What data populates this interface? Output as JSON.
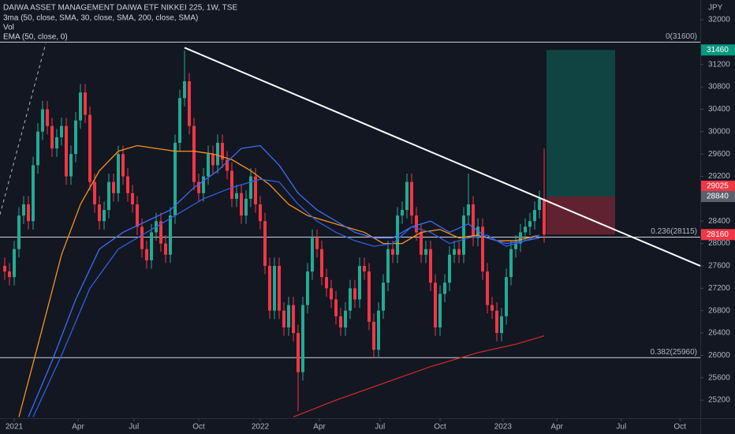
{
  "chart_data": {
    "type": "candlestick",
    "title": "DAIWA ASSET MANAGEMENT DAIWA ETF NIKKEI 225, 1W, TSE",
    "indicators": [
      "3ma (50, close, SMA, 30, close, SMA, 200, close, SMA)",
      "Vol",
      "EMA (50, close, 0)"
    ],
    "currency": "JPY",
    "up_color": "#22ab94",
    "down_color": "#f23645",
    "xlim": [
      -1,
      147
    ],
    "ylim": [
      24877,
      32353
    ],
    "xticks": [
      {
        "value": 2,
        "label": "2021"
      },
      {
        "value": 15.5,
        "label": "Apr"
      },
      {
        "value": 27.3,
        "label": "Jul"
      },
      {
        "value": 41,
        "label": "Oct"
      },
      {
        "value": 54,
        "label": "2022"
      },
      {
        "value": 66.5,
        "label": "Apr"
      },
      {
        "value": 79.3,
        "label": "Jul"
      },
      {
        "value": 92,
        "label": "Oct"
      },
      {
        "value": 105.3,
        "label": "2023"
      },
      {
        "value": 116.7,
        "label": "Apr"
      },
      {
        "value": 130.3,
        "label": "Jul"
      },
      {
        "value": 142.7,
        "label": "Oct"
      }
    ],
    "yticks": [
      32000,
      31200,
      30800,
      30400,
      30000,
      29600,
      29200,
      28400,
      28000,
      27600,
      27200,
      26800,
      26400,
      26000,
      25600,
      25200
    ],
    "x": [
      0,
      1,
      2,
      3,
      4,
      5,
      6,
      7,
      8,
      9,
      10,
      11,
      12,
      13,
      14,
      15,
      16,
      17,
      18,
      19,
      20,
      21,
      22,
      23,
      24,
      25,
      26,
      27,
      28,
      29,
      30,
      31,
      32,
      33,
      34,
      35,
      36,
      37,
      38,
      39,
      40,
      41,
      42,
      43,
      44,
      45,
      46,
      47,
      48,
      49,
      50,
      51,
      52,
      53,
      54,
      55,
      56,
      57,
      58,
      59,
      60,
      61,
      62,
      63,
      64,
      65,
      66,
      67,
      68,
      69,
      70,
      71,
      72,
      73,
      74,
      75,
      76,
      77,
      78,
      79,
      80,
      81,
      82,
      83,
      84,
      85,
      86,
      87,
      88,
      89,
      90,
      91,
      92,
      93,
      94,
      95,
      96,
      97,
      98,
      99,
      100,
      101,
      102,
      103,
      104,
      105,
      106,
      107,
      108,
      109,
      110,
      111,
      112,
      113,
      114
    ],
    "open": [
      27600,
      27500,
      27400,
      27900,
      28500,
      28700,
      28400,
      29400,
      30000,
      30400,
      30100,
      29700,
      29900,
      30100,
      29200,
      29600,
      30200,
      30700,
      30300,
      29100,
      28700,
      28400,
      28600,
      29100,
      28900,
      29600,
      29200,
      28900,
      28700,
      28300,
      27900,
      27700,
      28200,
      28400,
      28000,
      27800,
      28500,
      29800,
      30600,
      30900,
      30100,
      29100,
      28900,
      29200,
      29600,
      29400,
      29800,
      29500,
      29300,
      28800,
      28900,
      28500,
      28800,
      29200,
      28700,
      28400,
      27600,
      26800,
      27600,
      26800,
      26500,
      26900,
      26400,
      25700,
      26900,
      27500,
      28100,
      27900,
      27400,
      27200,
      27000,
      26700,
      26500,
      26800,
      27200,
      27000,
      27600,
      27500,
      26600,
      26100,
      26800,
      27300,
      27900,
      27800,
      28500,
      28600,
      29100,
      28500,
      28200,
      27800,
      27900,
      27300,
      26500,
      27100,
      27300,
      27800,
      27900,
      27800,
      28500,
      28700,
      28100,
      28300,
      27500,
      26900,
      26800,
      26400,
      26700,
      27400,
      27900,
      28000,
      28200,
      28300,
      28400,
      28600,
      28800
    ],
    "high": [
      27750,
      27650,
      28050,
      28650,
      28850,
      28850,
      29550,
      30150,
      30550,
      30550,
      30250,
      30050,
      30250,
      30250,
      29750,
      30350,
      30850,
      30850,
      30450,
      29250,
      28850,
      28750,
      29250,
      29250,
      29750,
      29750,
      29350,
      29050,
      28850,
      28450,
      28050,
      28350,
      28550,
      28550,
      28150,
      28650,
      29950,
      30750,
      31450,
      31050,
      30250,
      29250,
      29350,
      29750,
      29750,
      29950,
      29950,
      29650,
      29450,
      29050,
      29050,
      28950,
      29350,
      29350,
      28850,
      28550,
      27750,
      27750,
      27750,
      26950,
      27050,
      27050,
      26550,
      27050,
      27650,
      28250,
      28250,
      28050,
      27550,
      27350,
      27150,
      26850,
      26950,
      27350,
      27350,
      27750,
      27750,
      27650,
      26750,
      26950,
      27450,
      28050,
      28050,
      28650,
      28750,
      29250,
      29250,
      28650,
      28350,
      28050,
      28050,
      27450,
      27250,
      27450,
      27950,
      28050,
      28050,
      28650,
      29250,
      28850,
      28450,
      28450,
      27650,
      27050,
      26950,
      26850,
      27550,
      28050,
      28150,
      28350,
      28450,
      28550,
      28750,
      28950,
      29700
    ],
    "low": [
      27350,
      27250,
      27250,
      27750,
      28350,
      28250,
      28250,
      29250,
      29850,
      29950,
      29550,
      29550,
      29750,
      29050,
      29050,
      29450,
      30050,
      30150,
      28950,
      28550,
      28250,
      28250,
      28450,
      28750,
      28750,
      29050,
      28750,
      28550,
      28150,
      27750,
      27550,
      27550,
      28050,
      27850,
      27650,
      27650,
      28350,
      29650,
      30450,
      29950,
      28950,
      28750,
      28750,
      29050,
      29250,
      29250,
      29350,
      29150,
      28650,
      28650,
      28350,
      28350,
      28650,
      28550,
      28250,
      27450,
      26650,
      26650,
      26650,
      26350,
      26350,
      26250,
      25000,
      25550,
      26750,
      27350,
      27750,
      27250,
      27050,
      26850,
      26550,
      26350,
      26350,
      26650,
      26850,
      26850,
      27350,
      26450,
      25950,
      25950,
      26650,
      27150,
      27650,
      27650,
      28350,
      28450,
      28350,
      28050,
      27650,
      27650,
      27150,
      26350,
      26350,
      26950,
      27150,
      27650,
      27650,
      27650,
      28350,
      27950,
      27950,
      27350,
      26750,
      26650,
      26250,
      26250,
      26550,
      27250,
      27750,
      27850,
      28050,
      28150,
      28250,
      28450,
      28010
    ],
    "close": [
      27500,
      27400,
      27900,
      28500,
      28700,
      28400,
      29400,
      30000,
      30400,
      30100,
      29700,
      29900,
      30100,
      29200,
      29600,
      30200,
      30700,
      30300,
      29100,
      28700,
      28400,
      28600,
      29100,
      28900,
      29600,
      29200,
      28900,
      28700,
      28300,
      27900,
      27700,
      28200,
      28400,
      28000,
      27800,
      28500,
      29800,
      30600,
      30900,
      30100,
      29100,
      28900,
      29200,
      29600,
      29400,
      29800,
      29500,
      29300,
      28800,
      28900,
      28500,
      28800,
      29200,
      28700,
      28400,
      27600,
      26800,
      27600,
      26800,
      26500,
      26900,
      26400,
      25700,
      26900,
      27500,
      28100,
      27900,
      27400,
      27200,
      27000,
      26700,
      26500,
      26800,
      27200,
      27000,
      27600,
      27500,
      26600,
      26100,
      26800,
      27300,
      27900,
      27800,
      28500,
      28600,
      29100,
      28500,
      28200,
      27800,
      27900,
      27300,
      26500,
      27100,
      27300,
      27800,
      27900,
      27800,
      28500,
      28700,
      28100,
      28300,
      27500,
      26900,
      26800,
      26400,
      26700,
      27400,
      27900,
      28000,
      28200,
      28300,
      28400,
      28600,
      28800,
      28160
    ],
    "overlays": [
      {
        "color": "#f7931a",
        "x": [
          3,
          8,
          12,
          16,
          20,
          24,
          28,
          32,
          36,
          40,
          44,
          48,
          52,
          56,
          60,
          64,
          68,
          72,
          76,
          80,
          84,
          88,
          92,
          96,
          100,
          104,
          108,
          113
        ],
        "values": [
          24900,
          26500,
          27800,
          28700,
          29300,
          29650,
          29750,
          29700,
          29650,
          29650,
          29600,
          29500,
          29300,
          29050,
          28700,
          28500,
          28400,
          28300,
          28200,
          28000,
          28000,
          28200,
          28250,
          28100,
          28150,
          28050,
          28050,
          28150
        ]
      },
      {
        "color": "#3d6df2",
        "x": [
          5,
          10,
          15,
          20,
          25,
          30,
          35,
          40,
          45,
          50,
          54,
          58,
          62,
          66,
          70,
          74,
          78,
          82,
          86,
          90,
          94,
          98,
          102,
          106,
          110,
          113
        ],
        "values": [
          24900,
          25900,
          27000,
          27900,
          28200,
          28400,
          28600,
          29000,
          29300,
          29700,
          29750,
          29400,
          28900,
          28600,
          28400,
          28200,
          28100,
          28100,
          28300,
          28400,
          28200,
          28350,
          28100,
          28000,
          28050,
          28100
        ]
      },
      {
        "color": "#2f5fe0",
        "x": [
          6,
          12,
          18,
          24,
          30,
          36,
          42,
          48,
          54,
          58,
          62,
          66,
          70,
          74,
          78,
          82,
          86,
          90,
          94,
          98,
          102,
          106,
          110,
          113
        ],
        "values": [
          24900,
          26000,
          27200,
          27900,
          28200,
          28500,
          28800,
          29000,
          29150,
          29100,
          28700,
          28400,
          28200,
          28050,
          27950,
          28000,
          28300,
          28200,
          28000,
          28100,
          28150,
          27950,
          28050,
          28150
        ]
      },
      {
        "color": "#c62828",
        "x": [
          61,
          70,
          80,
          90,
          100,
          108,
          114
        ],
        "values": [
          24900,
          25200,
          25500,
          25800,
          26050,
          26200,
          26350
        ]
      }
    ],
    "trendline": {
      "x": [
        38,
        147
      ],
      "values": [
        31500,
        27600
      ]
    },
    "levels": [
      {
        "value": 31600,
        "label": "0(31600)"
      },
      {
        "value": 28115,
        "label": "0.236(28115)"
      },
      {
        "value": 25960,
        "label": "0.382(25960)"
      }
    ],
    "position": {
      "x": [
        114.5,
        129
      ],
      "target": 31460,
      "entry": 28840,
      "stop": 28160
    },
    "price_labels": [
      {
        "value": 31460,
        "color": "#089981"
      },
      {
        "value": 29025,
        "color": "#f23645"
      },
      {
        "value": 28840,
        "color": "#5d606b"
      },
      {
        "value": 28160,
        "color": "#f23645"
      }
    ]
  }
}
